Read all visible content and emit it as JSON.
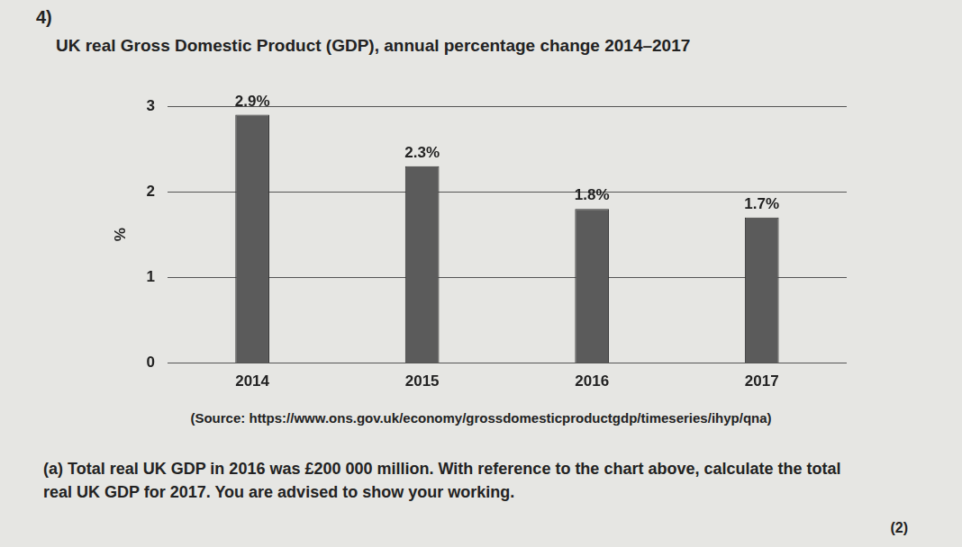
{
  "page": {
    "number": "4)",
    "source": "(Source: https://www.ons.gov.uk/economy/grossdomesticproductgdp/timeseries/ihyp/qna)",
    "question": "(a) Total real UK GDP in 2016 was £200 000 million. With reference to the chart above, calculate the total real UK GDP for 2017. You are advised to show your working.",
    "marks": "(2)"
  },
  "chart_data": {
    "type": "bar",
    "title": "UK real Gross Domestic Product (GDP), annual percentage change 2014–2017",
    "y_label": "%",
    "categories": [
      "2014",
      "2015",
      "2016",
      "2017"
    ],
    "values": [
      2.9,
      2.3,
      1.8,
      1.7
    ],
    "value_labels": [
      "2.9%",
      "2.3%",
      "1.8%",
      "1.7%"
    ],
    "color": "#5b5b5b",
    "ylim": [
      0,
      3
    ],
    "yticks": [
      0,
      1,
      2,
      3
    ],
    "grid": true,
    "data_labels": true
  }
}
